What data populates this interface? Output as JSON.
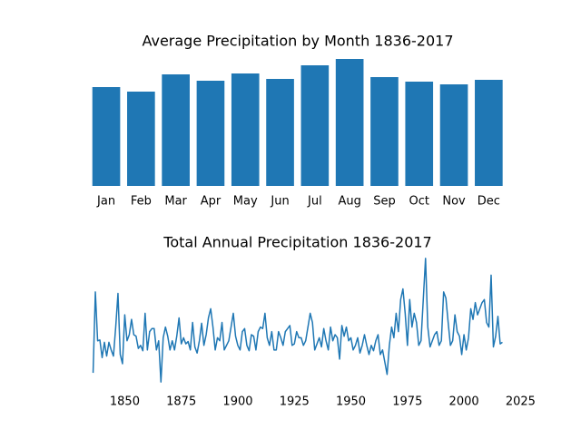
{
  "chart_data": [
    {
      "type": "bar",
      "title": "Average Precipitation by Month 1836-2017",
      "categories": [
        "Jan",
        "Feb",
        "Mar",
        "Apr",
        "May",
        "Jun",
        "Jul",
        "Aug",
        "Sep",
        "Oct",
        "Nov",
        "Dec"
      ],
      "values": [
        3.27,
        3.12,
        3.69,
        3.48,
        3.72,
        3.54,
        3.99,
        4.2,
        3.6,
        3.45,
        3.36,
        3.51
      ],
      "color": "#1f77b4",
      "ylim": [
        0,
        4.41
      ]
    },
    {
      "type": "line",
      "title": "Total Annual Precipitation 1836-2017",
      "x": [
        1836,
        1837,
        1838,
        1839,
        1840,
        1841,
        1842,
        1843,
        1844,
        1845,
        1846,
        1847,
        1848,
        1849,
        1850,
        1851,
        1852,
        1853,
        1854,
        1855,
        1856,
        1857,
        1858,
        1859,
        1860,
        1861,
        1862,
        1863,
        1864,
        1865,
        1866,
        1867,
        1868,
        1869,
        1870,
        1871,
        1872,
        1873,
        1874,
        1875,
        1876,
        1877,
        1878,
        1879,
        1880,
        1881,
        1882,
        1883,
        1884,
        1885,
        1886,
        1887,
        1888,
        1889,
        1890,
        1891,
        1892,
        1893,
        1894,
        1895,
        1896,
        1897,
        1898,
        1899,
        1900,
        1901,
        1902,
        1903,
        1904,
        1905,
        1906,
        1907,
        1908,
        1909,
        1910,
        1911,
        1912,
        1913,
        1914,
        1915,
        1916,
        1917,
        1918,
        1919,
        1920,
        1921,
        1922,
        1923,
        1924,
        1925,
        1926,
        1927,
        1928,
        1929,
        1930,
        1931,
        1932,
        1933,
        1934,
        1935,
        1936,
        1937,
        1938,
        1939,
        1940,
        1941,
        1942,
        1943,
        1944,
        1945,
        1946,
        1947,
        1948,
        1949,
        1950,
        1951,
        1952,
        1953,
        1954,
        1955,
        1956,
        1957,
        1958,
        1959,
        1960,
        1961,
        1962,
        1963,
        1964,
        1965,
        1966,
        1967,
        1968,
        1969,
        1970,
        1971,
        1972,
        1973,
        1974,
        1975,
        1976,
        1977,
        1978,
        1979,
        1980,
        1981,
        1982,
        1983,
        1984,
        1985,
        1986,
        1987,
        1988,
        1989,
        1990,
        1991,
        1992,
        1993,
        1994,
        1995,
        1996,
        1997,
        1998,
        1999,
        2000,
        2001,
        2002,
        2003,
        2004,
        2005,
        2006,
        2007,
        2008,
        2009,
        2010,
        2011,
        2012,
        2013,
        2014,
        2015,
        2016,
        2017
      ],
      "series": [
        {
          "color": "#1f77b4",
          "values": [
            38.8,
            49.4,
            43,
            43.1,
            40.8,
            42.8,
            41,
            42.8,
            41.8,
            41,
            44.8,
            49.2,
            41.2,
            40,
            46.4,
            43,
            43.8,
            45.8,
            43.8,
            43.6,
            42,
            42.4,
            41.7,
            46.6,
            41.8,
            44.2,
            44.6,
            44.6,
            41.8,
            43,
            37.6,
            43.4,
            44.8,
            43.6,
            41.8,
            43,
            41.8,
            43.6,
            46,
            42.6,
            43.4,
            42.6,
            42.9,
            41.8,
            45.4,
            42.2,
            41.4,
            43,
            45.3,
            42.4,
            43.8,
            46,
            47.2,
            44.8,
            41.8,
            43.4,
            43,
            45.4,
            41.8,
            42.4,
            43,
            44.8,
            46.6,
            43.6,
            42.4,
            41.8,
            44.2,
            44.6,
            42.4,
            41.7,
            43.8,
            43.6,
            41.8,
            44.2,
            44.8,
            44.6,
            46.6,
            43.4,
            42.4,
            44.2,
            41.8,
            41.8,
            44.2,
            43.4,
            42.4,
            44.2,
            44.6,
            45,
            42.4,
            42.6,
            44.2,
            43.4,
            43.4,
            42.4,
            43,
            44.8,
            46.6,
            45.4,
            41.8,
            42.6,
            43.4,
            42.2,
            44.6,
            43,
            41.8,
            44.8,
            43,
            43.8,
            43.4,
            40.6,
            45,
            43.6,
            44.8,
            43,
            43.4,
            41.8,
            42.4,
            43.4,
            41.4,
            42.4,
            43.8,
            42.4,
            41.2,
            42.4,
            41.7,
            43,
            43.8,
            41.2,
            41.8,
            40.2,
            38.6,
            42.4,
            44.8,
            43.4,
            46.6,
            44.2,
            48.4,
            49.8,
            46.6,
            42.4,
            48.4,
            44.8,
            46.6,
            45.4,
            42.4,
            43,
            48.4,
            53.8,
            44.8,
            42.2,
            43,
            43.8,
            44.2,
            42.4,
            43,
            49.4,
            48.6,
            45.4,
            42.4,
            43,
            46.4,
            44.2,
            43.6,
            41.2,
            43.8,
            41.8,
            43.4,
            47.2,
            45.8,
            48,
            46.4,
            47.2,
            48,
            48.4,
            45.4,
            44.8,
            51.6,
            42.2,
            43.6,
            46.2,
            42.6,
            42.8
          ]
        }
      ],
      "xlim": [
        1826.95,
        2026.05
      ],
      "xticks": [
        1850,
        1875,
        1900,
        1925,
        1950,
        1975,
        2000,
        2025
      ],
      "ylim": [
        36.79,
        54.61
      ]
    }
  ]
}
